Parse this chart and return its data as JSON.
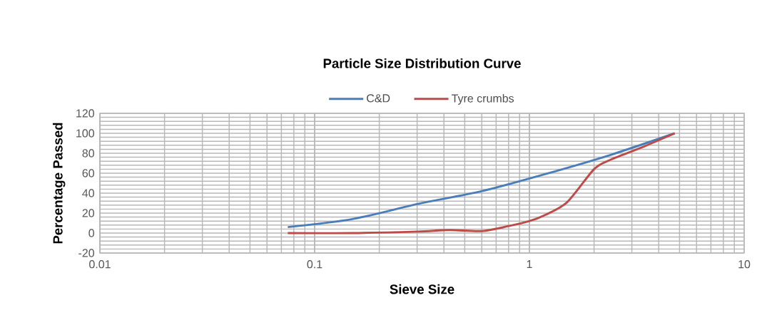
{
  "chart_data": {
    "type": "line",
    "title": "Particle Size Distribution Curve",
    "xlabel": "Sieve Size",
    "ylabel": "Percentage  Passed",
    "log": "x",
    "xlim": [
      0.01,
      10
    ],
    "xticks": [
      0.01,
      0.1,
      1,
      10
    ],
    "ylim": [
      -20,
      120
    ],
    "yticks": [
      -20,
      0,
      20,
      40,
      60,
      80,
      100,
      120
    ],
    "grid": true,
    "legend": "top",
    "marker": "none",
    "line_style": "solid",
    "series": [
      {
        "name": "C&D",
        "color": "#4a7ebb",
        "x": [
          0.075,
          0.15,
          0.3,
          0.6,
          1.18,
          2.36,
          4.75
        ],
        "values": [
          6,
          14,
          29,
          42,
          59,
          78,
          100
        ]
      },
      {
        "name": "Tyre crumbs",
        "color": "#be4b48",
        "x": [
          0.075,
          0.15,
          0.3,
          0.425,
          0.6,
          0.8,
          1.0,
          1.18,
          1.5,
          2.0,
          2.36,
          3.35,
          4.75
        ],
        "values": [
          0,
          0,
          1.5,
          3,
          2,
          7,
          12,
          18,
          31,
          64,
          73,
          86,
          100
        ]
      }
    ]
  }
}
